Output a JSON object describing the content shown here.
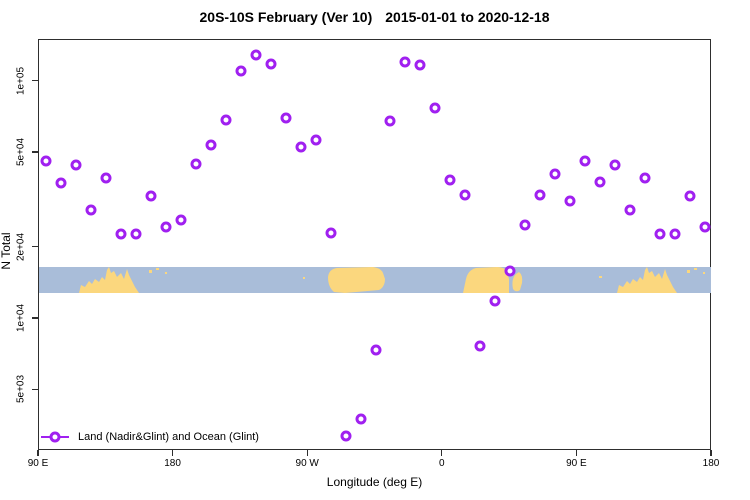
{
  "chart_data": {
    "type": "scatter",
    "title_left": "20S-10S February (Ver 10)",
    "title_right": "2015-01-01 to 2020-12-18",
    "xlabel": "Longitude (deg E)",
    "ylabel": "N Total",
    "xlim": [
      90,
      540
    ],
    "ylim_log": [
      2700,
      150000
    ],
    "y_scale": "log10",
    "grid": false,
    "x_axis": {
      "ticks": [
        {
          "label": "90 E",
          "lon": 90
        },
        {
          "label": "180",
          "lon": 180
        },
        {
          "label": "90 W",
          "lon": 270
        },
        {
          "label": "0",
          "lon": 360
        },
        {
          "label": "90 E",
          "lon": 450
        },
        {
          "label": "180",
          "lon": 540
        }
      ]
    },
    "y_axis": {
      "ticks": [
        {
          "label": "1e+05",
          "value": 100000
        },
        {
          "label": "5e+04",
          "value": 50000
        },
        {
          "label": "2e+04",
          "value": 20000
        },
        {
          "label": "1e+04",
          "value": 10000
        },
        {
          "label": "5e+03",
          "value": 5000
        }
      ]
    },
    "series": [
      {
        "name": "Land (Nadir&Glint) and Ocean (Glint)",
        "marker": "open-circle",
        "points_lon_n": [
          [
            95,
            46300
          ],
          [
            105,
            37500
          ],
          [
            115,
            44600
          ],
          [
            125,
            28800
          ],
          [
            135,
            39200
          ],
          [
            145,
            22800
          ],
          [
            155,
            22800
          ],
          [
            165,
            33100
          ],
          [
            175,
            24400
          ],
          [
            185,
            26200
          ],
          [
            195,
            45100
          ],
          [
            205,
            54300
          ],
          [
            215,
            69200
          ],
          [
            225,
            111000
          ],
          [
            235,
            129000
          ],
          [
            245,
            119000
          ],
          [
            255,
            70500
          ],
          [
            265,
            53200
          ],
          [
            275,
            57000
          ],
          [
            285,
            23000
          ],
          [
            295,
            3210
          ],
          [
            305,
            3790
          ],
          [
            315,
            7430
          ],
          [
            325,
            68100
          ],
          [
            335,
            121000
          ],
          [
            345,
            118000
          ],
          [
            355,
            77500
          ],
          [
            365,
            38400
          ],
          [
            375,
            33300
          ],
          [
            385,
            7670
          ],
          [
            395,
            11900
          ],
          [
            405,
            15900
          ],
          [
            415,
            25000
          ],
          [
            425,
            33300
          ],
          [
            435,
            41000
          ],
          [
            445,
            31400
          ],
          [
            455,
            46500
          ],
          [
            465,
            37800
          ],
          [
            475,
            44700
          ],
          [
            485,
            28900
          ],
          [
            495,
            39300
          ],
          [
            505,
            22900
          ],
          [
            515,
            22900
          ],
          [
            525,
            33100
          ],
          [
            535,
            24400
          ]
        ]
      }
    ],
    "legend": {
      "position": "bottom-left",
      "label": "Land (Nadir&Glint) and Ocean (Glint)"
    },
    "map_strip": {
      "description": "20S-10S latitude world map band",
      "ocean_color": "#A9BDD9",
      "land_color": "#FBD77E"
    },
    "colors": {
      "point": "#A020F0",
      "axis": "#2e2e2e"
    }
  }
}
